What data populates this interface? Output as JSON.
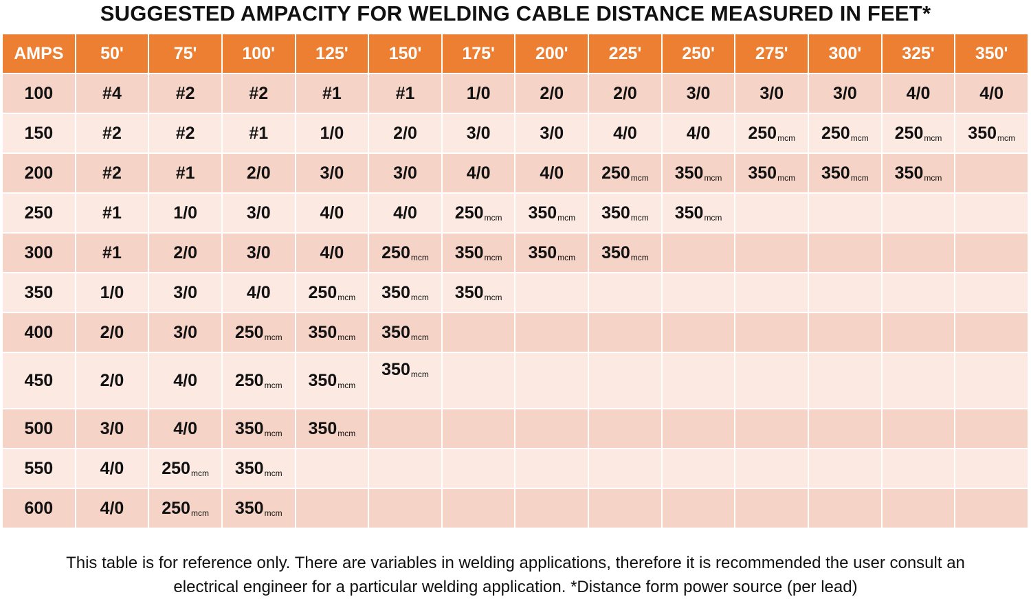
{
  "title": "SUGGESTED AMPACITY FOR WELDING CABLE DISTANCE MEASURED IN FEET*",
  "table": {
    "headers": [
      "AMPS",
      "50'",
      "75'",
      "100'",
      "125'",
      "150'",
      "175'",
      "200'",
      "225'",
      "250'",
      "275'",
      "300'",
      "325'",
      "350'"
    ],
    "rows": [
      [
        "100",
        "#4",
        "#2",
        "#2",
        "#1",
        "#1",
        "1/0",
        "2/0",
        "2/0",
        "3/0",
        "3/0",
        "3/0",
        "4/0",
        "4/0"
      ],
      [
        "150",
        "#2",
        "#2",
        "#1",
        "1/0",
        "2/0",
        "3/0",
        "3/0",
        "4/0",
        "4/0",
        "250mcm",
        "250mcm",
        "250mcm",
        "350mcm"
      ],
      [
        "200",
        "#2",
        "#1",
        "2/0",
        "3/0",
        "3/0",
        "4/0",
        "4/0",
        "250mcm",
        "350mcm",
        "350mcm",
        "350mcm",
        "350mcm",
        ""
      ],
      [
        "250",
        "#1",
        "1/0",
        "3/0",
        "4/0",
        "4/0",
        "250mcm",
        "350mcm",
        "350mcm",
        "350mcm",
        "",
        "",
        "",
        ""
      ],
      [
        "300",
        "#1",
        "2/0",
        "3/0",
        "4/0",
        "250mcm",
        "350mcm",
        "350mcm",
        "350mcm",
        "",
        "",
        "",
        "",
        ""
      ],
      [
        "350",
        "1/0",
        "3/0",
        "4/0",
        "250mcm",
        "350mcm",
        "350mcm",
        "",
        "",
        "",
        "",
        "",
        "",
        ""
      ],
      [
        "400",
        "2/0",
        "3/0",
        "250mcm",
        "350mcm",
        "350mcm",
        "",
        "",
        "",
        "",
        "",
        "",
        "",
        ""
      ],
      [
        "450",
        "2/0",
        "4/0",
        "250mcm",
        "350mcm",
        "350mcm",
        "",
        "",
        "",
        "",
        "",
        "",
        "",
        ""
      ],
      [
        "500",
        "3/0",
        "4/0",
        "350mcm",
        "350mcm",
        "",
        "",
        "",
        "",
        "",
        "",
        "",
        "",
        ""
      ],
      [
        "550",
        "4/0",
        "250mcm",
        "350mcm",
        "",
        "",
        "",
        "",
        "",
        "",
        "",
        "",
        "",
        ""
      ],
      [
        "600",
        "4/0",
        "250mcm",
        "350mcm",
        "",
        "",
        "",
        "",
        "",
        "",
        "",
        "",
        "",
        ""
      ]
    ]
  },
  "footnote_line1": "This table is for reference only. There are variables in welding applications, therefore it is recommended the user consult an",
  "footnote_line2": "electrical engineer for a particular welding application. *Distance form power source (per lead)",
  "colors": {
    "header_bg": "#ec7f32",
    "row_dark": "#f5d3c6",
    "row_light": "#fbe9e2"
  }
}
